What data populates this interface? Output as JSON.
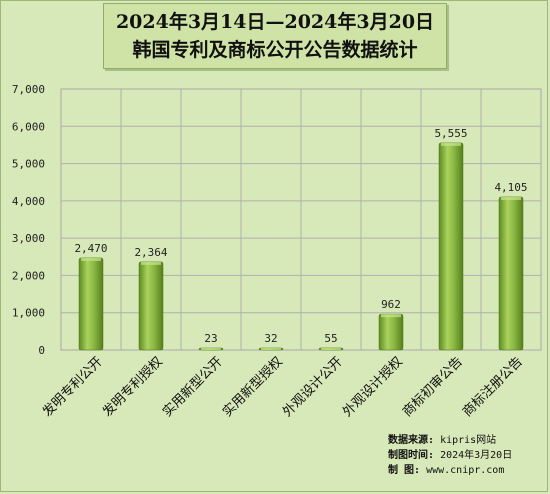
{
  "title": {
    "line1": "2024年3月14日—2024年3月20日",
    "line2": "韩国专利及商标公开公告数据统计"
  },
  "chart_data": {
    "type": "bar",
    "categories": [
      "发明专利公开",
      "发明专利授权",
      "实用新型公开",
      "实用新型授权",
      "外观设计公开",
      "外观设计授权",
      "商标初审公告",
      "商标注册公告"
    ],
    "values": [
      2470,
      2364,
      23,
      32,
      55,
      962,
      5555,
      4105
    ],
    "value_labels": [
      "2,470",
      "2,364",
      "23",
      "32",
      "55",
      "962",
      "5,555",
      "4,105"
    ],
    "ylim": [
      0,
      7000
    ],
    "yticks": [
      0,
      1000,
      2000,
      3000,
      4000,
      5000,
      6000,
      7000
    ],
    "ytick_labels": [
      "0",
      "1,000",
      "2,000",
      "3,000",
      "4,000",
      "5,000",
      "6,000",
      "7,000"
    ],
    "grid": true,
    "bar_color": "#7aa83a"
  },
  "source": {
    "data_label": "数据来源:",
    "data_value": "kipris网站",
    "time_label": "制图时间:",
    "time_value": "2024年3月20日",
    "maker_label": "制    图:",
    "maker_value": "www.cnipr.com"
  }
}
